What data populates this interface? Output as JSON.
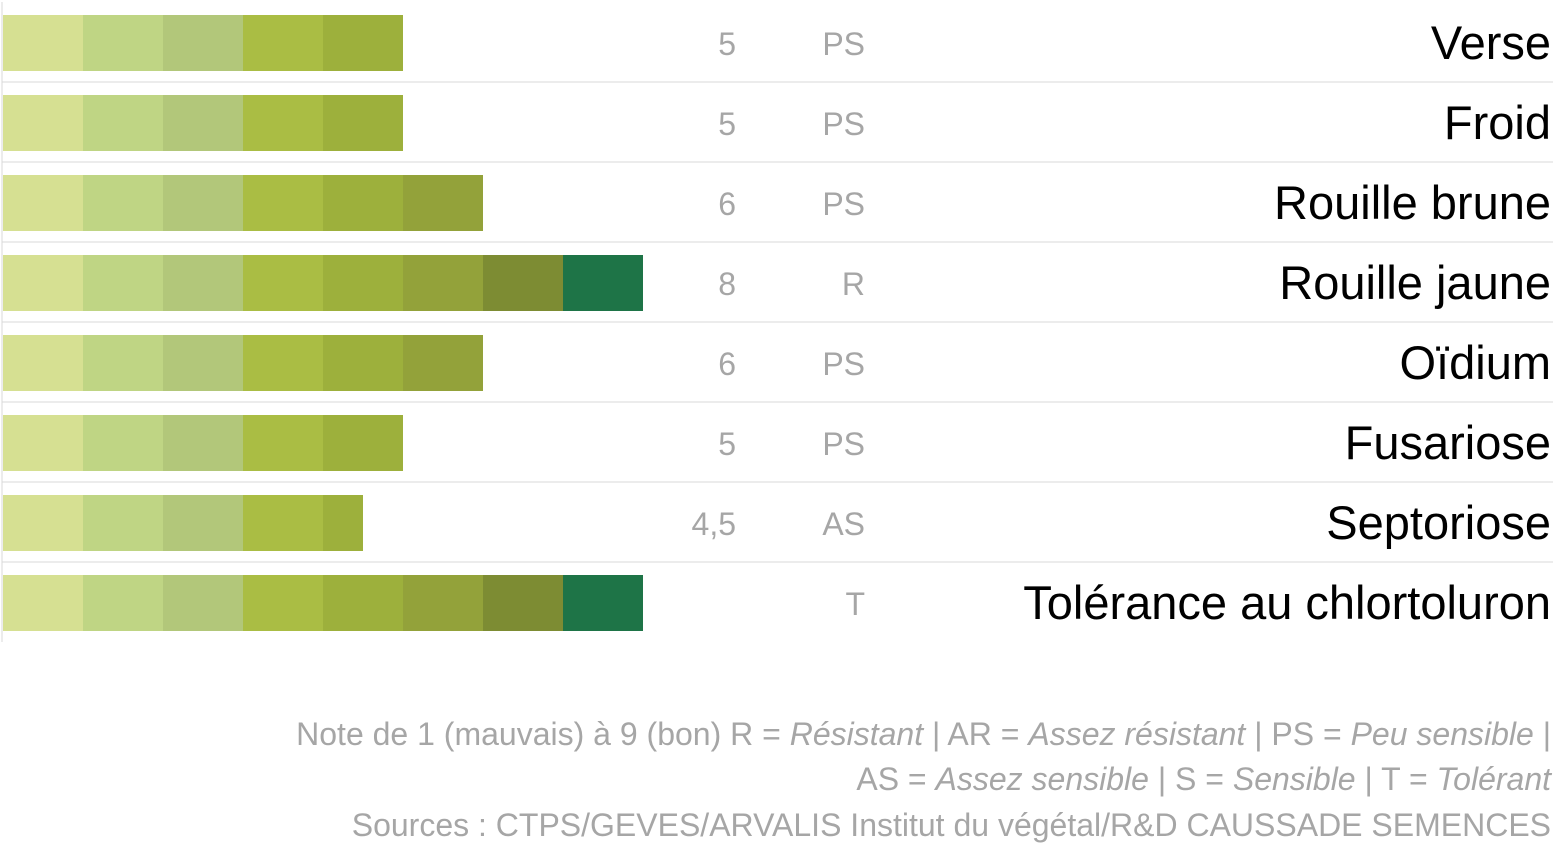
{
  "chart_data": {
    "type": "bar",
    "orientation": "horizontal",
    "scale_min": 1,
    "scale_max": 9,
    "segment_colors": [
      "#d6e092",
      "#bfd584",
      "#b2c77a",
      "#aabd44",
      "#9db03c",
      "#93a23a",
      "#7d8c33",
      "#1e7447"
    ],
    "rows": [
      {
        "label": "Verse",
        "value": 5,
        "value_text": "5",
        "code": "PS"
      },
      {
        "label": "Froid",
        "value": 5,
        "value_text": "5",
        "code": "PS"
      },
      {
        "label": "Rouille brune",
        "value": 6,
        "value_text": "6",
        "code": "PS"
      },
      {
        "label": "Rouille jaune",
        "value": 8,
        "value_text": "8",
        "code": "R"
      },
      {
        "label": "Oïdium",
        "value": 6,
        "value_text": "6",
        "code": "PS"
      },
      {
        "label": "Fusariose",
        "value": 5,
        "value_text": "5",
        "code": "PS"
      },
      {
        "label": "Septoriose",
        "value": 4.5,
        "value_text": "4,5",
        "code": "AS"
      },
      {
        "label": "Tolérance au chlortoluron",
        "value": 8,
        "value_text": "",
        "code": "T"
      }
    ]
  },
  "legend": {
    "line1_prefix": "Note de 1 (mauvais) à 9 (bon) R = ",
    "resistant": "Résistant",
    "sep1": " | AR = ",
    "assez_resistant": "Assez résistant",
    "sep2": " | PS = ",
    "peu_sensible": "Peu sensible",
    "sep3": " |",
    "line2_prefix": "AS = ",
    "assez_sensible": "Assez sensible",
    "sep4": " | S = ",
    "sensible": "Sensible",
    "sep5": " | T = ",
    "tolerant": "Tolérant"
  },
  "sources": "Sources : CTPS/GEVES/ARVALIS Institut du végétal/R&D CAUSSADE SEMENCES"
}
